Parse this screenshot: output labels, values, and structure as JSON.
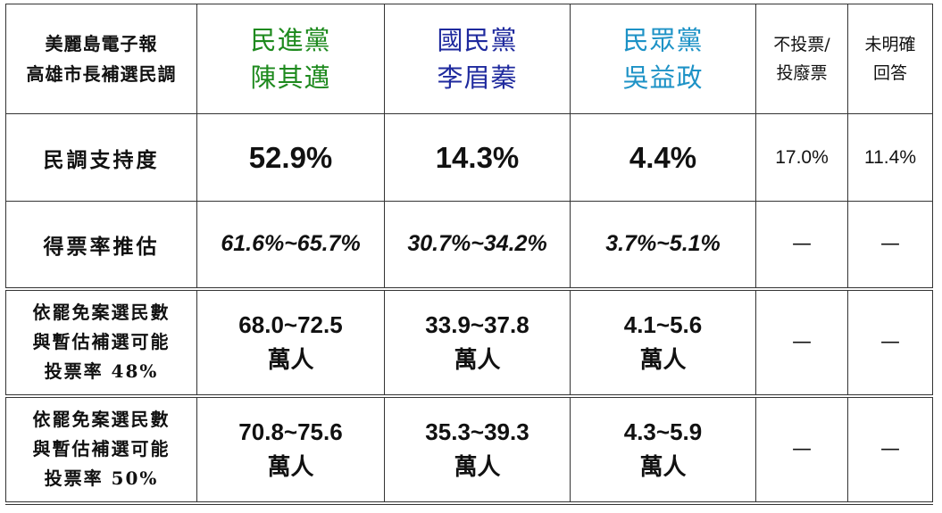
{
  "header": {
    "title_line1": "美麗島電子報",
    "title_line2": "高雄市長補選民調",
    "candidates": [
      {
        "party": "民進黨",
        "name": "陳其邁",
        "color": "#1e8a1e"
      },
      {
        "party": "國民黨",
        "name": "李眉蓁",
        "color": "#1f2a9e"
      },
      {
        "party": "民眾黨",
        "name": "吳益政",
        "color": "#1d92c6"
      }
    ],
    "no_vote_line1": "不投票/",
    "no_vote_line2": "投廢票",
    "undecided_line1": "未明確",
    "undecided_line2": "回答"
  },
  "rows": {
    "support": {
      "label": "民調支持度",
      "values": [
        "52.9%",
        "14.3%",
        "4.4%",
        "17.0%",
        "11.4%"
      ]
    },
    "estimate": {
      "label": "得票率推估",
      "values": [
        "61.6%~65.7%",
        "30.7%~34.2%",
        "3.7%~5.1%",
        "—",
        "—"
      ]
    },
    "turnout48": {
      "label_line1": "依罷免案選民數",
      "label_line2": "與暫估補選可能",
      "label_line3": "投票率 48%",
      "values": [
        "68.0~72.5",
        "33.9~37.8",
        "4.1~5.6"
      ],
      "unit": "萬人",
      "dashes": [
        "—",
        "—"
      ]
    },
    "turnout50": {
      "label_line1": "依罷免案選民數",
      "label_line2": "與暫估補選可能",
      "label_line3": "投票率 50%",
      "values": [
        "70.8~75.6",
        "35.3~39.3",
        "4.3~5.9"
      ],
      "unit": "萬人",
      "dashes": [
        "—",
        "—"
      ]
    }
  }
}
